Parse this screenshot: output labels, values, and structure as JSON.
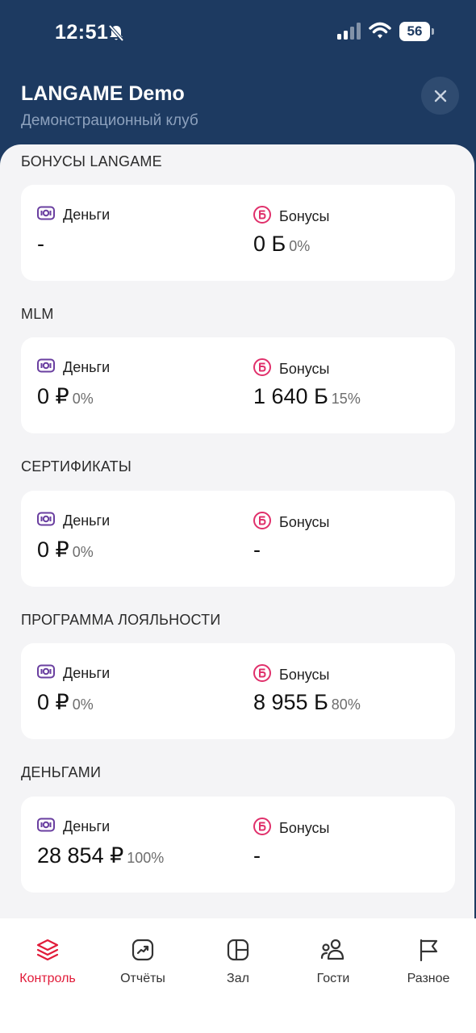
{
  "status_bar": {
    "time": "12:51",
    "battery": "56"
  },
  "header": {
    "title": "LANGAME Demo",
    "subtitle": "Демонстрационный клуб"
  },
  "sections": [
    {
      "title": "БОНУСЫ LANGAME",
      "money": {
        "label": "Деньги",
        "value": "-",
        "percent": ""
      },
      "bonus": {
        "label": "Бонусы",
        "value": "0 Б",
        "percent": "0%"
      }
    },
    {
      "title": "MLM",
      "money": {
        "label": "Деньги",
        "value": "0 ₽",
        "percent": "0%"
      },
      "bonus": {
        "label": "Бонусы",
        "value": "1 640 Б",
        "percent": "15%"
      }
    },
    {
      "title": "СЕРТИФИКАТЫ",
      "money": {
        "label": "Деньги",
        "value": "0 ₽",
        "percent": "0%"
      },
      "bonus": {
        "label": "Бонусы",
        "value": "-",
        "percent": ""
      }
    },
    {
      "title": "ПРОГРАММА ЛОЯЛЬНОСТИ",
      "money": {
        "label": "Деньги",
        "value": "0 ₽",
        "percent": "0%"
      },
      "bonus": {
        "label": "Бонусы",
        "value": "8 955 Б",
        "percent": "80%"
      }
    },
    {
      "title": "ДЕНЬГАМИ",
      "money": {
        "label": "Деньги",
        "value": "28 854 ₽",
        "percent": "100%"
      },
      "bonus": {
        "label": "Бонусы",
        "value": "-",
        "percent": ""
      }
    }
  ],
  "icons": {
    "money": "cash-icon",
    "bonus": "bonus-b-icon"
  },
  "tabs": [
    {
      "label": "Контроль",
      "icon": "layers-icon",
      "active": true
    },
    {
      "label": "Отчёты",
      "icon": "chart-trend-icon",
      "active": false
    },
    {
      "label": "Зал",
      "icon": "layout-icon",
      "active": false
    },
    {
      "label": "Гости",
      "icon": "users-icon",
      "active": false
    },
    {
      "label": "Разное",
      "icon": "flag-icon",
      "active": false
    }
  ],
  "colors": {
    "header_bg": "#1d3a61",
    "accent": "#e11b39",
    "money_icon": "#6a3fa0",
    "bonus_icon": "#e0306b"
  }
}
